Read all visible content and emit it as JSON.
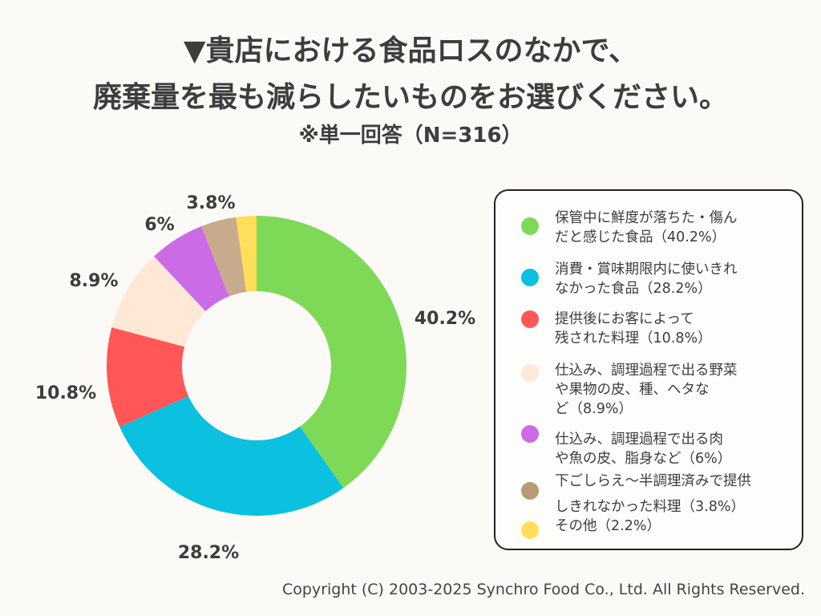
{
  "title_line1": "▼貴店における食品ロスのなかで、",
  "title_line2": "廃棄量を最も減らしたいものをお選びください。",
  "subtitle": "※単一回答（N=316）",
  "copyright": "Copyright (C) 2003-2025  Synchro Food Co., Ltd. All Rights Reserved.",
  "chart_data": {
    "type": "pie",
    "donut": true,
    "start": "top, clockwise",
    "legend_position": "right",
    "categories": [
      "保管中に鮮度が落ちた・傷んだと感じた食品（40.2%）",
      "消費・賞味期限内に使いきれなかった食品（28.2%）",
      "提供後にお客によって残された料理（10.8%）",
      "仕込み、調理過程で出る野菜や果物の皮、種、ヘタなど（8.9%）",
      "仕込み、調理過程で出る肉や魚の皮、脂身など（6%）",
      "下ごしらえ～半調理済みで提供しきれなかった料理（3.8%）",
      "その他（2.2%）"
    ],
    "values": [
      40.2,
      28.2,
      10.8,
      8.9,
      6,
      3.8,
      2.2
    ],
    "data_labels": [
      "40.2%",
      "28.2%",
      "10.8%",
      "8.9%",
      "6%",
      "3.8%",
      ""
    ],
    "colors": [
      "#7ed957",
      "#0cc0df",
      "#ff5757",
      "#ffe8d6",
      "#cb6ce6",
      "#c8ab8c",
      "#ffde59"
    ],
    "legend_colors": [
      "#7ed957",
      "#0cc0df",
      "#ff5757",
      "#ffe8d6",
      "#cb6ce6",
      "#b89b74",
      "#ffde59"
    ]
  }
}
